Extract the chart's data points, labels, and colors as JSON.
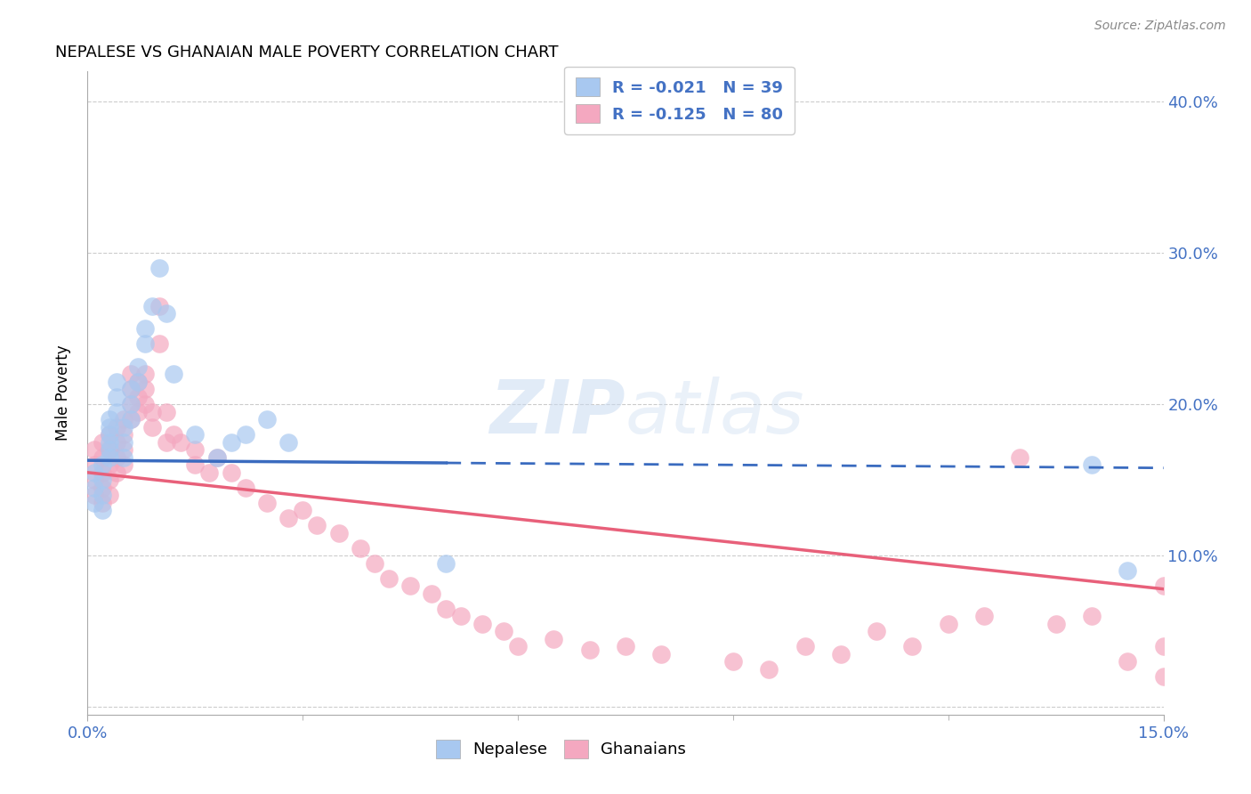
{
  "title": "NEPALESE VS GHANAIAN MALE POVERTY CORRELATION CHART",
  "source": "Source: ZipAtlas.com",
  "ylabel_label": "Male Poverty",
  "xlim": [
    0.0,
    0.15
  ],
  "ylim": [
    -0.005,
    0.42
  ],
  "ytick_positions": [
    0.0,
    0.1,
    0.2,
    0.3,
    0.4
  ],
  "ytick_labels": [
    "",
    "10.0%",
    "20.0%",
    "30.0%",
    "40.0%"
  ],
  "nepalese_R": -0.021,
  "nepalese_N": 39,
  "ghanaian_R": -0.125,
  "ghanaian_N": 80,
  "nepalese_color": "#a8c8f0",
  "ghanaian_color": "#f4a8c0",
  "nepalese_line_color": "#3a6bbf",
  "ghanaian_line_color": "#e8607a",
  "background_color": "#ffffff",
  "grid_color": "#cccccc",
  "nepalese_line_y0": 0.163,
  "nepalese_line_y1": 0.158,
  "ghanaian_line_y0": 0.155,
  "ghanaian_line_y1": 0.078,
  "nepalese_x": [
    0.001,
    0.001,
    0.001,
    0.002,
    0.002,
    0.002,
    0.002,
    0.003,
    0.003,
    0.003,
    0.003,
    0.003,
    0.003,
    0.004,
    0.004,
    0.004,
    0.005,
    0.005,
    0.005,
    0.006,
    0.006,
    0.006,
    0.007,
    0.007,
    0.008,
    0.008,
    0.009,
    0.01,
    0.011,
    0.012,
    0.015,
    0.018,
    0.02,
    0.022,
    0.025,
    0.028,
    0.05,
    0.14,
    0.145
  ],
  "nepalese_y": [
    0.155,
    0.145,
    0.135,
    0.16,
    0.15,
    0.14,
    0.13,
    0.175,
    0.17,
    0.165,
    0.18,
    0.185,
    0.19,
    0.195,
    0.205,
    0.215,
    0.185,
    0.175,
    0.165,
    0.21,
    0.2,
    0.19,
    0.225,
    0.215,
    0.24,
    0.25,
    0.265,
    0.29,
    0.26,
    0.22,
    0.18,
    0.165,
    0.175,
    0.18,
    0.19,
    0.175,
    0.095,
    0.16,
    0.09
  ],
  "ghanaian_x": [
    0.001,
    0.001,
    0.001,
    0.001,
    0.002,
    0.002,
    0.002,
    0.002,
    0.002,
    0.003,
    0.003,
    0.003,
    0.003,
    0.003,
    0.004,
    0.004,
    0.004,
    0.004,
    0.005,
    0.005,
    0.005,
    0.005,
    0.006,
    0.006,
    0.006,
    0.006,
    0.007,
    0.007,
    0.007,
    0.008,
    0.008,
    0.008,
    0.009,
    0.009,
    0.01,
    0.01,
    0.011,
    0.011,
    0.012,
    0.013,
    0.015,
    0.015,
    0.017,
    0.018,
    0.02,
    0.022,
    0.025,
    0.028,
    0.03,
    0.032,
    0.035,
    0.038,
    0.04,
    0.042,
    0.045,
    0.048,
    0.05,
    0.052,
    0.055,
    0.058,
    0.06,
    0.065,
    0.07,
    0.075,
    0.08,
    0.09,
    0.095,
    0.1,
    0.105,
    0.11,
    0.115,
    0.12,
    0.125,
    0.13,
    0.135,
    0.14,
    0.145,
    0.15,
    0.15,
    0.15
  ],
  "ghanaian_y": [
    0.17,
    0.16,
    0.15,
    0.14,
    0.175,
    0.165,
    0.155,
    0.145,
    0.135,
    0.18,
    0.17,
    0.16,
    0.15,
    0.14,
    0.185,
    0.175,
    0.165,
    0.155,
    0.19,
    0.18,
    0.17,
    0.16,
    0.22,
    0.21,
    0.2,
    0.19,
    0.215,
    0.205,
    0.195,
    0.22,
    0.21,
    0.2,
    0.195,
    0.185,
    0.24,
    0.265,
    0.195,
    0.175,
    0.18,
    0.175,
    0.17,
    0.16,
    0.155,
    0.165,
    0.155,
    0.145,
    0.135,
    0.125,
    0.13,
    0.12,
    0.115,
    0.105,
    0.095,
    0.085,
    0.08,
    0.075,
    0.065,
    0.06,
    0.055,
    0.05,
    0.04,
    0.045,
    0.038,
    0.04,
    0.035,
    0.03,
    0.025,
    0.04,
    0.035,
    0.05,
    0.04,
    0.055,
    0.06,
    0.165,
    0.055,
    0.06,
    0.03,
    0.08,
    0.04,
    0.02
  ]
}
